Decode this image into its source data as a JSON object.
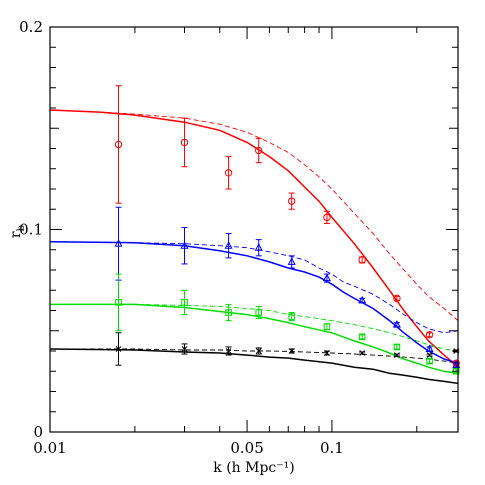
{
  "chart_data": {
    "type": "scatter",
    "xlabel": "k (h Mpc⁻¹)",
    "ylabel": "r_b",
    "xscale": "log",
    "xlim": [
      0.01,
      0.28
    ],
    "ylim": [
      0,
      0.2
    ],
    "x_ticks": [
      {
        "value": 0.01,
        "label": "0.01"
      },
      {
        "value": 0.05,
        "label": "0.05"
      },
      {
        "value": 0.1,
        "label": "0.1"
      }
    ],
    "y_ticks": [
      {
        "value": 0,
        "label": "0"
      },
      {
        "value": 0.1,
        "label": "0.1"
      },
      {
        "value": 0.2,
        "label": "0.2"
      }
    ],
    "grid": false,
    "series": [
      {
        "color": "#ff0000",
        "marker": "circle",
        "points": [
          {
            "x": 0.0175,
            "y": 0.142,
            "err": 0.029
          },
          {
            "x": 0.03,
            "y": 0.143,
            "err": 0.012
          },
          {
            "x": 0.043,
            "y": 0.128,
            "err": 0.008
          },
          {
            "x": 0.055,
            "y": 0.139,
            "err": 0.006
          },
          {
            "x": 0.072,
            "y": 0.114,
            "err": 0.004
          },
          {
            "x": 0.096,
            "y": 0.106,
            "err": 0.003
          },
          {
            "x": 0.128,
            "y": 0.085,
            "err": 0.0015
          },
          {
            "x": 0.17,
            "y": 0.066,
            "err": 0.001
          },
          {
            "x": 0.222,
            "y": 0.048,
            "err": 0.001
          },
          {
            "x": 0.276,
            "y": 0.034,
            "err": 0.001
          }
        ],
        "solid": [
          [
            0.01,
            0.159
          ],
          [
            0.015,
            0.158
          ],
          [
            0.02,
            0.1565
          ],
          [
            0.03,
            0.153
          ],
          [
            0.04,
            0.149
          ],
          [
            0.05,
            0.143
          ],
          [
            0.06,
            0.136
          ],
          [
            0.07,
            0.129
          ],
          [
            0.08,
            0.121
          ],
          [
            0.09,
            0.114
          ],
          [
            0.1,
            0.106
          ],
          [
            0.12,
            0.093
          ],
          [
            0.14,
            0.081
          ],
          [
            0.16,
            0.07
          ],
          [
            0.18,
            0.06
          ],
          [
            0.2,
            0.052
          ],
          [
            0.22,
            0.045
          ],
          [
            0.25,
            0.038
          ],
          [
            0.28,
            0.032
          ]
        ],
        "dashed": [
          [
            0.01,
            0.159
          ],
          [
            0.015,
            0.158
          ],
          [
            0.02,
            0.157
          ],
          [
            0.03,
            0.155
          ],
          [
            0.04,
            0.152
          ],
          [
            0.05,
            0.148
          ],
          [
            0.06,
            0.143
          ],
          [
            0.07,
            0.138
          ],
          [
            0.08,
            0.132
          ],
          [
            0.09,
            0.126
          ],
          [
            0.1,
            0.12
          ],
          [
            0.12,
            0.108
          ],
          [
            0.14,
            0.098
          ],
          [
            0.16,
            0.088
          ],
          [
            0.18,
            0.08
          ],
          [
            0.2,
            0.073
          ],
          [
            0.22,
            0.067
          ],
          [
            0.25,
            0.061
          ],
          [
            0.28,
            0.055
          ]
        ]
      },
      {
        "color": "#0000ff",
        "marker": "triangle",
        "points": [
          {
            "x": 0.0175,
            "y": 0.093,
            "err": 0.018
          },
          {
            "x": 0.03,
            "y": 0.092,
            "err": 0.009
          },
          {
            "x": 0.043,
            "y": 0.092,
            "err": 0.006
          },
          {
            "x": 0.055,
            "y": 0.091,
            "err": 0.004
          },
          {
            "x": 0.072,
            "y": 0.084,
            "err": 0.003
          },
          {
            "x": 0.096,
            "y": 0.076,
            "err": 0.002
          },
          {
            "x": 0.128,
            "y": 0.065,
            "err": 0.001
          },
          {
            "x": 0.17,
            "y": 0.053,
            "err": 0.001
          },
          {
            "x": 0.222,
            "y": 0.041,
            "err": 0.001
          },
          {
            "x": 0.276,
            "y": 0.033,
            "err": 0.001
          }
        ],
        "solid": [
          [
            0.01,
            0.094
          ],
          [
            0.02,
            0.0935
          ],
          [
            0.03,
            0.092
          ],
          [
            0.04,
            0.0895
          ],
          [
            0.05,
            0.087
          ],
          [
            0.06,
            0.084
          ],
          [
            0.07,
            0.081
          ],
          [
            0.08,
            0.079
          ],
          [
            0.09,
            0.0765
          ],
          [
            0.1,
            0.073
          ],
          [
            0.11,
            0.069
          ],
          [
            0.12,
            0.066
          ],
          [
            0.14,
            0.061
          ],
          [
            0.16,
            0.055
          ],
          [
            0.18,
            0.049
          ],
          [
            0.2,
            0.044
          ],
          [
            0.22,
            0.04
          ],
          [
            0.25,
            0.036
          ],
          [
            0.28,
            0.034
          ]
        ],
        "dashed": [
          [
            0.01,
            0.094
          ],
          [
            0.02,
            0.0935
          ],
          [
            0.03,
            0.093
          ],
          [
            0.04,
            0.092
          ],
          [
            0.05,
            0.091
          ],
          [
            0.06,
            0.089
          ],
          [
            0.07,
            0.087
          ],
          [
            0.08,
            0.085
          ],
          [
            0.09,
            0.081
          ],
          [
            0.1,
            0.078
          ],
          [
            0.11,
            0.074
          ],
          [
            0.12,
            0.072
          ],
          [
            0.14,
            0.068
          ],
          [
            0.16,
            0.063
          ],
          [
            0.18,
            0.058
          ],
          [
            0.2,
            0.054
          ],
          [
            0.22,
            0.051
          ],
          [
            0.25,
            0.049
          ],
          [
            0.28,
            0.05
          ]
        ]
      },
      {
        "color": "#00dd00",
        "marker": "square",
        "points": [
          {
            "x": 0.0175,
            "y": 0.064,
            "err": 0.014
          },
          {
            "x": 0.03,
            "y": 0.064,
            "err": 0.006
          },
          {
            "x": 0.043,
            "y": 0.059,
            "err": 0.004
          },
          {
            "x": 0.055,
            "y": 0.059,
            "err": 0.003
          },
          {
            "x": 0.072,
            "y": 0.057,
            "err": 0.002
          },
          {
            "x": 0.096,
            "y": 0.052,
            "err": 0.0015
          },
          {
            "x": 0.128,
            "y": 0.047,
            "err": 0.001
          },
          {
            "x": 0.17,
            "y": 0.042,
            "err": 0.001
          },
          {
            "x": 0.222,
            "y": 0.035,
            "err": 0.001
          },
          {
            "x": 0.276,
            "y": 0.03,
            "err": 0.001
          }
        ],
        "solid": [
          [
            0.01,
            0.063
          ],
          [
            0.02,
            0.063
          ],
          [
            0.03,
            0.0615
          ],
          [
            0.04,
            0.0595
          ],
          [
            0.05,
            0.058
          ],
          [
            0.06,
            0.056
          ],
          [
            0.07,
            0.054
          ],
          [
            0.08,
            0.052
          ],
          [
            0.1,
            0.049
          ],
          [
            0.12,
            0.045
          ],
          [
            0.14,
            0.042
          ],
          [
            0.16,
            0.039
          ],
          [
            0.18,
            0.036
          ],
          [
            0.2,
            0.034
          ],
          [
            0.22,
            0.032
          ],
          [
            0.25,
            0.03
          ],
          [
            0.28,
            0.029
          ]
        ],
        "dashed": [
          [
            0.01,
            0.063
          ],
          [
            0.02,
            0.063
          ],
          [
            0.03,
            0.0625
          ],
          [
            0.04,
            0.062
          ],
          [
            0.05,
            0.061
          ],
          [
            0.06,
            0.06
          ],
          [
            0.07,
            0.058
          ],
          [
            0.08,
            0.057
          ],
          [
            0.1,
            0.055
          ],
          [
            0.12,
            0.053
          ],
          [
            0.14,
            0.051
          ],
          [
            0.16,
            0.049
          ],
          [
            0.18,
            0.047
          ],
          [
            0.2,
            0.045
          ],
          [
            0.22,
            0.043
          ],
          [
            0.25,
            0.041
          ],
          [
            0.28,
            0.04
          ]
        ]
      },
      {
        "color": "#000000",
        "marker": "cross",
        "points": [
          {
            "x": 0.0175,
            "y": 0.041,
            "err": 0.008
          },
          {
            "x": 0.03,
            "y": 0.041,
            "err": 0.0025
          },
          {
            "x": 0.043,
            "y": 0.04,
            "err": 0.002
          },
          {
            "x": 0.055,
            "y": 0.04,
            "err": 0.0015
          },
          {
            "x": 0.072,
            "y": 0.04,
            "err": 0.001
          },
          {
            "x": 0.096,
            "y": 0.039,
            "err": 0.001
          },
          {
            "x": 0.128,
            "y": 0.039,
            "err": 0.0005
          },
          {
            "x": 0.17,
            "y": 0.038,
            "err": 0.0005
          },
          {
            "x": 0.222,
            "y": 0.038,
            "err": 0.0005
          },
          {
            "x": 0.276,
            "y": 0.04,
            "err": 0.0005
          }
        ],
        "solid": [
          [
            0.01,
            0.041
          ],
          [
            0.02,
            0.0405
          ],
          [
            0.03,
            0.0395
          ],
          [
            0.04,
            0.039
          ],
          [
            0.05,
            0.038
          ],
          [
            0.06,
            0.037
          ],
          [
            0.07,
            0.0365
          ],
          [
            0.08,
            0.0355
          ],
          [
            0.1,
            0.034
          ],
          [
            0.12,
            0.032
          ],
          [
            0.14,
            0.031
          ],
          [
            0.16,
            0.029
          ],
          [
            0.18,
            0.028
          ],
          [
            0.2,
            0.027
          ],
          [
            0.22,
            0.026
          ],
          [
            0.25,
            0.025
          ],
          [
            0.28,
            0.024
          ]
        ],
        "dashed": [
          [
            0.01,
            0.041
          ],
          [
            0.02,
            0.041
          ],
          [
            0.03,
            0.0405
          ],
          [
            0.04,
            0.0405
          ],
          [
            0.05,
            0.04
          ],
          [
            0.06,
            0.04
          ],
          [
            0.07,
            0.0398
          ],
          [
            0.08,
            0.0395
          ],
          [
            0.1,
            0.039
          ],
          [
            0.12,
            0.0385
          ],
          [
            0.14,
            0.038
          ],
          [
            0.16,
            0.0375
          ],
          [
            0.18,
            0.037
          ],
          [
            0.2,
            0.0365
          ],
          [
            0.22,
            0.036
          ],
          [
            0.25,
            0.035
          ],
          [
            0.28,
            0.034
          ]
        ]
      }
    ]
  }
}
